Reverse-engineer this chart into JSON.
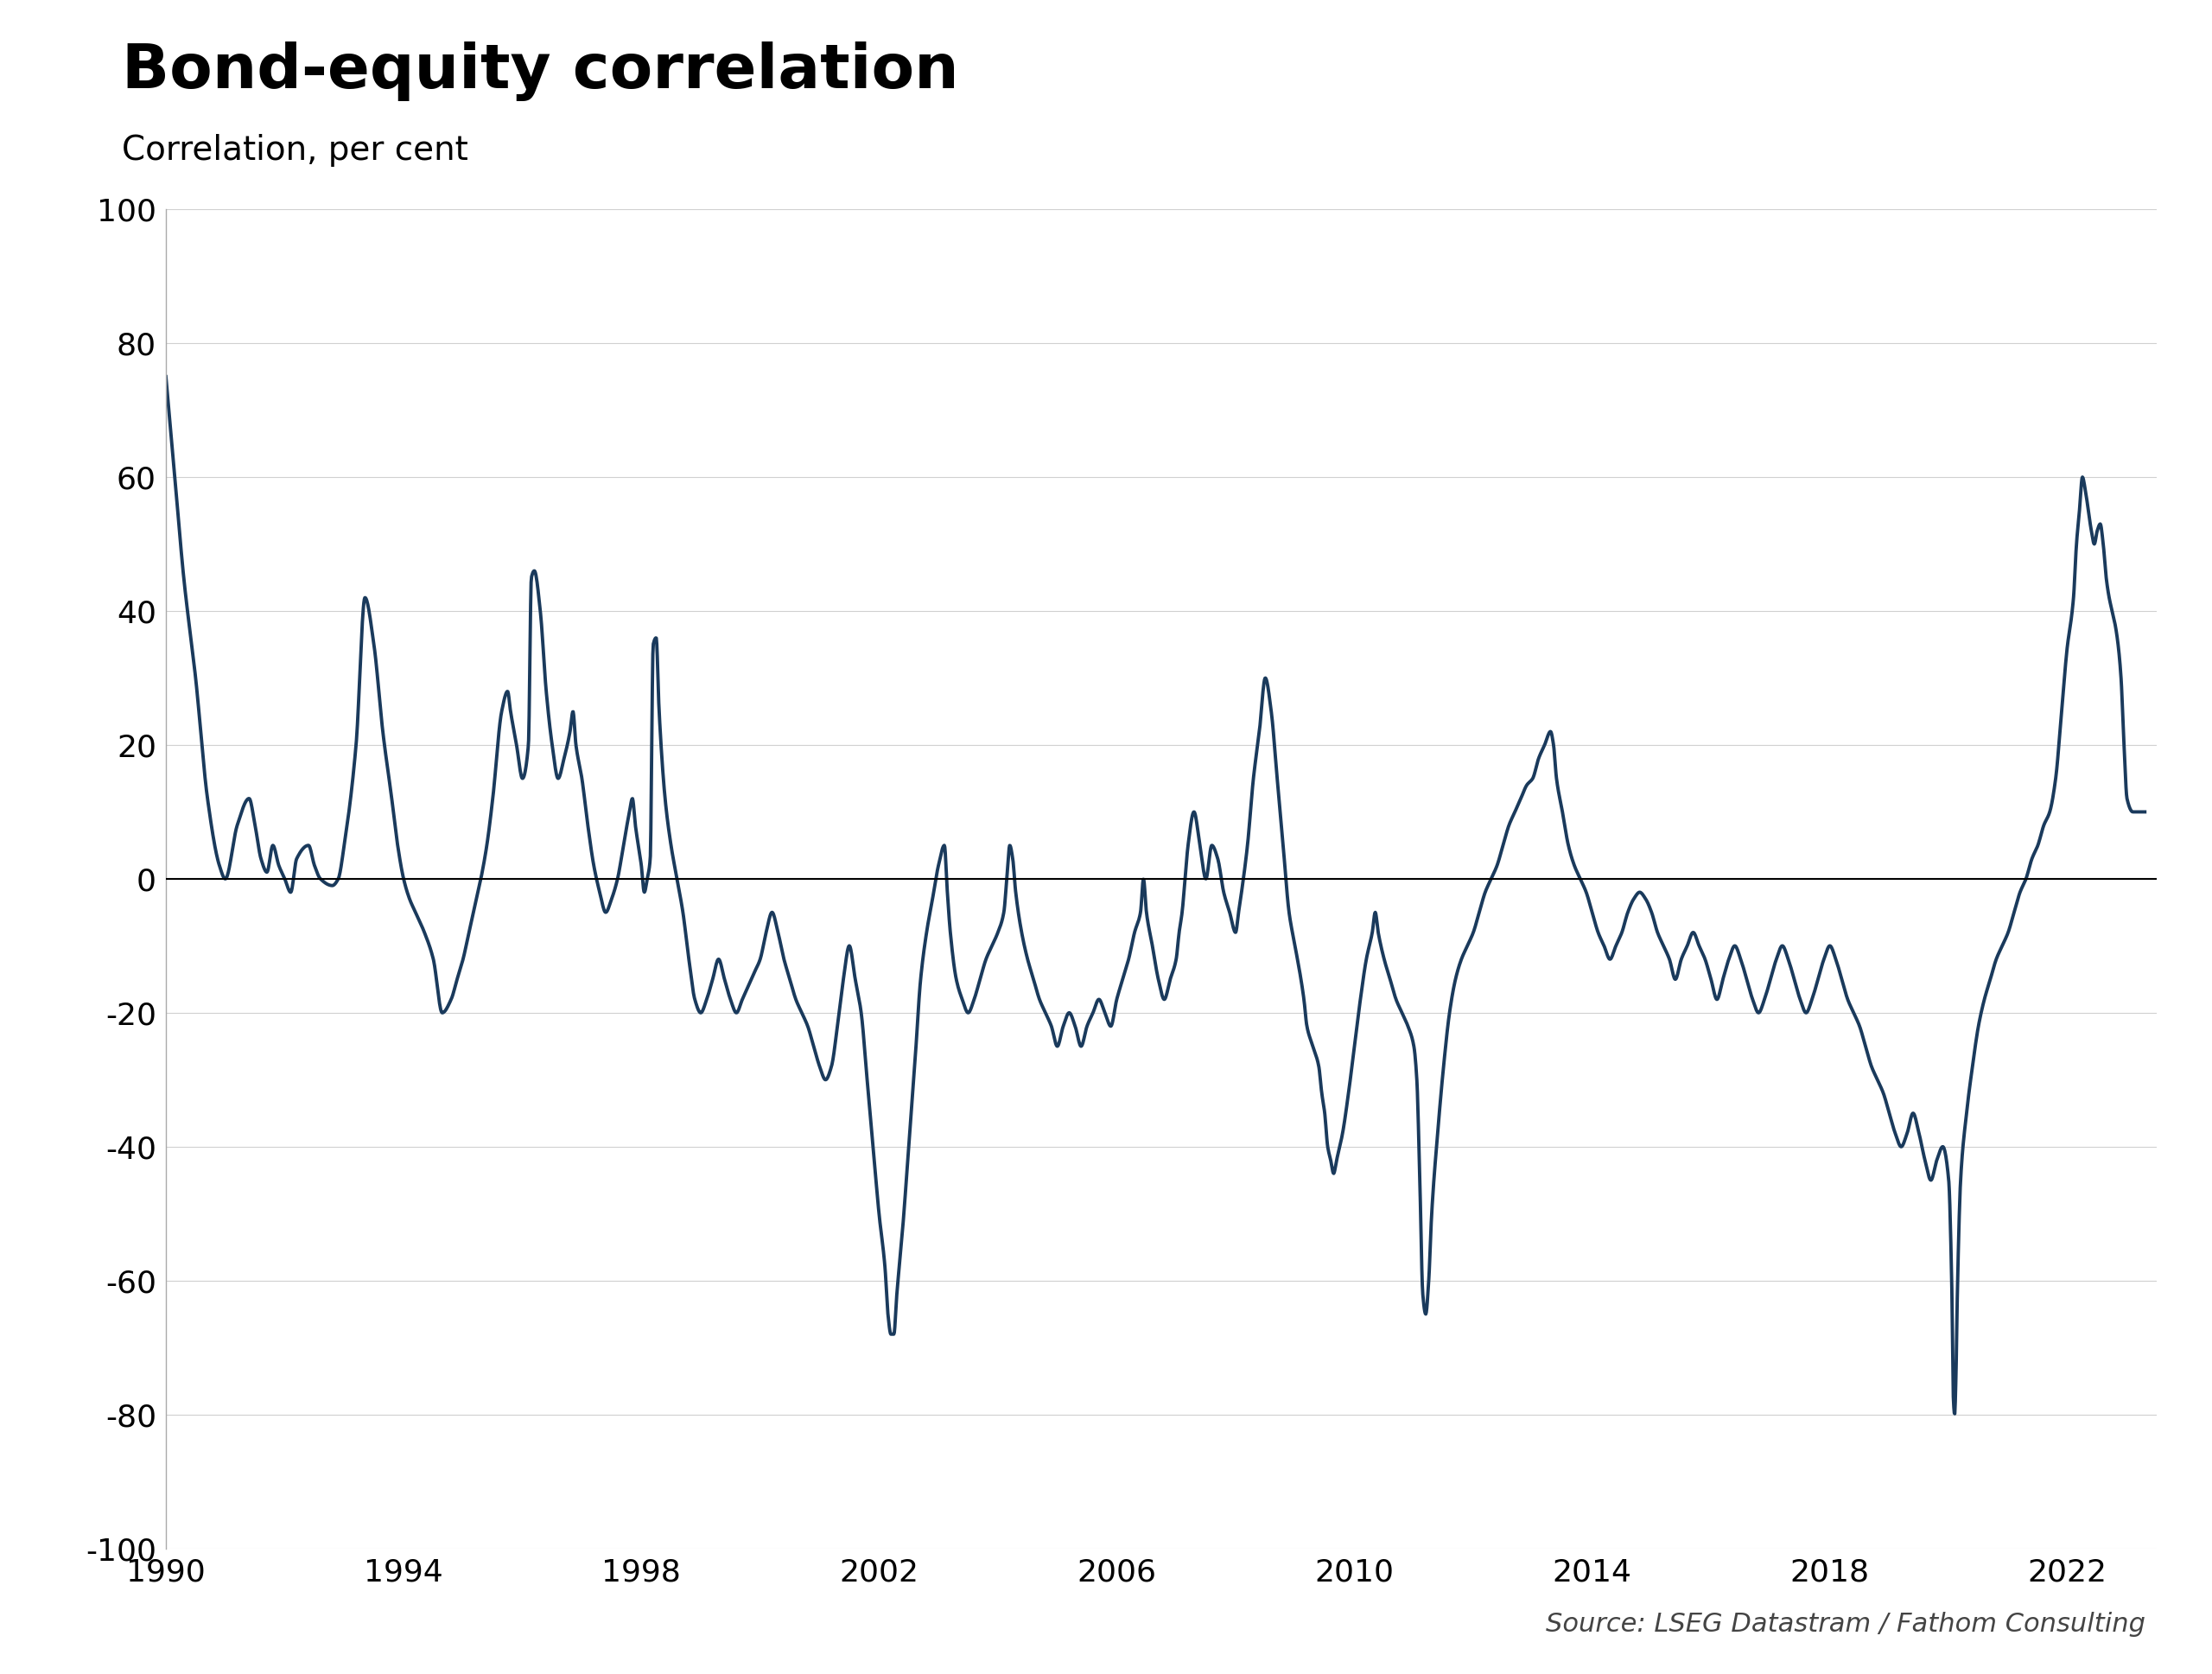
{
  "title": "Bond-equity correlation",
  "subtitle": "Correlation, per cent",
  "source": "Source: LSEG Datastram / Fathom Consulting",
  "line_color": "#1a3a5c",
  "background_color": "#ffffff",
  "grid_color": "#d0d0d0",
  "ylim": [
    -100,
    100
  ],
  "yticks": [
    -100,
    -80,
    -60,
    -40,
    -20,
    0,
    20,
    40,
    60,
    80,
    100
  ],
  "xticks": [
    1990,
    1994,
    1998,
    2002,
    2006,
    2010,
    2014,
    2018,
    2022
  ],
  "title_fontsize": 52,
  "subtitle_fontsize": 28,
  "tick_fontsize": 26,
  "source_fontsize": 22,
  "line_width": 2.8,
  "control_points": [
    [
      1990.0,
      75
    ],
    [
      1990.15,
      60
    ],
    [
      1990.3,
      45
    ],
    [
      1990.5,
      30
    ],
    [
      1990.7,
      12
    ],
    [
      1990.9,
      2
    ],
    [
      1991.0,
      0
    ],
    [
      1991.2,
      8
    ],
    [
      1991.4,
      12
    ],
    [
      1991.5,
      8
    ],
    [
      1991.6,
      3
    ],
    [
      1991.7,
      1
    ],
    [
      1991.8,
      5
    ],
    [
      1991.9,
      2
    ],
    [
      1992.0,
      0
    ],
    [
      1992.1,
      -2
    ],
    [
      1992.2,
      3
    ],
    [
      1992.4,
      5
    ],
    [
      1992.5,
      2
    ],
    [
      1992.6,
      0
    ],
    [
      1992.8,
      -1
    ],
    [
      1992.9,
      0
    ],
    [
      1993.0,
      5
    ],
    [
      1993.2,
      20
    ],
    [
      1993.35,
      42
    ],
    [
      1993.5,
      35
    ],
    [
      1993.65,
      22
    ],
    [
      1993.8,
      12
    ],
    [
      1993.9,
      5
    ],
    [
      1994.0,
      0
    ],
    [
      1994.1,
      -3
    ],
    [
      1994.2,
      -5
    ],
    [
      1994.35,
      -8
    ],
    [
      1994.5,
      -12
    ],
    [
      1994.65,
      -20
    ],
    [
      1994.8,
      -18
    ],
    [
      1994.9,
      -15
    ],
    [
      1995.0,
      -12
    ],
    [
      1995.1,
      -8
    ],
    [
      1995.2,
      -4
    ],
    [
      1995.3,
      0
    ],
    [
      1995.4,
      5
    ],
    [
      1995.5,
      12
    ],
    [
      1995.65,
      25
    ],
    [
      1995.75,
      28
    ],
    [
      1995.8,
      25
    ],
    [
      1995.9,
      20
    ],
    [
      1996.0,
      15
    ],
    [
      1996.1,
      20
    ],
    [
      1996.15,
      45
    ],
    [
      1996.2,
      46
    ],
    [
      1996.3,
      40
    ],
    [
      1996.4,
      28
    ],
    [
      1996.5,
      20
    ],
    [
      1996.6,
      15
    ],
    [
      1996.7,
      18
    ],
    [
      1996.8,
      22
    ],
    [
      1996.85,
      25
    ],
    [
      1996.9,
      20
    ],
    [
      1997.0,
      15
    ],
    [
      1997.1,
      8
    ],
    [
      1997.2,
      2
    ],
    [
      1997.3,
      -2
    ],
    [
      1997.4,
      -5
    ],
    [
      1997.5,
      -3
    ],
    [
      1997.6,
      0
    ],
    [
      1997.7,
      5
    ],
    [
      1997.8,
      10
    ],
    [
      1997.85,
      12
    ],
    [
      1997.9,
      8
    ],
    [
      1998.0,
      2
    ],
    [
      1998.05,
      -2
    ],
    [
      1998.1,
      0
    ],
    [
      1998.15,
      3
    ],
    [
      1998.2,
      35
    ],
    [
      1998.25,
      36
    ],
    [
      1998.3,
      25
    ],
    [
      1998.4,
      12
    ],
    [
      1998.5,
      5
    ],
    [
      1998.6,
      0
    ],
    [
      1998.7,
      -5
    ],
    [
      1998.8,
      -12
    ],
    [
      1998.9,
      -18
    ],
    [
      1999.0,
      -20
    ],
    [
      1999.1,
      -18
    ],
    [
      1999.2,
      -15
    ],
    [
      1999.3,
      -12
    ],
    [
      1999.4,
      -15
    ],
    [
      1999.5,
      -18
    ],
    [
      1999.6,
      -20
    ],
    [
      1999.7,
      -18
    ],
    [
      1999.8,
      -16
    ],
    [
      1999.9,
      -14
    ],
    [
      2000.0,
      -12
    ],
    [
      2000.1,
      -8
    ],
    [
      2000.2,
      -5
    ],
    [
      2000.3,
      -8
    ],
    [
      2000.4,
      -12
    ],
    [
      2000.5,
      -15
    ],
    [
      2000.6,
      -18
    ],
    [
      2000.7,
      -20
    ],
    [
      2000.8,
      -22
    ],
    [
      2000.9,
      -25
    ],
    [
      2001.0,
      -28
    ],
    [
      2001.1,
      -30
    ],
    [
      2001.2,
      -28
    ],
    [
      2001.3,
      -22
    ],
    [
      2001.4,
      -15
    ],
    [
      2001.5,
      -10
    ],
    [
      2001.6,
      -15
    ],
    [
      2001.7,
      -20
    ],
    [
      2001.8,
      -30
    ],
    [
      2001.9,
      -40
    ],
    [
      2002.0,
      -50
    ],
    [
      2002.1,
      -58
    ],
    [
      2002.15,
      -65
    ],
    [
      2002.2,
      -68
    ],
    [
      2002.25,
      -68
    ],
    [
      2002.3,
      -62
    ],
    [
      2002.4,
      -52
    ],
    [
      2002.5,
      -40
    ],
    [
      2002.6,
      -28
    ],
    [
      2002.7,
      -15
    ],
    [
      2002.8,
      -8
    ],
    [
      2002.9,
      -3
    ],
    [
      2003.0,
      2
    ],
    [
      2003.1,
      5
    ],
    [
      2003.15,
      -2
    ],
    [
      2003.2,
      -8
    ],
    [
      2003.3,
      -15
    ],
    [
      2003.4,
      -18
    ],
    [
      2003.5,
      -20
    ],
    [
      2003.6,
      -18
    ],
    [
      2003.7,
      -15
    ],
    [
      2003.8,
      -12
    ],
    [
      2003.9,
      -10
    ],
    [
      2004.0,
      -8
    ],
    [
      2004.1,
      -5
    ],
    [
      2004.15,
      0
    ],
    [
      2004.2,
      5
    ],
    [
      2004.25,
      3
    ],
    [
      2004.3,
      -2
    ],
    [
      2004.4,
      -8
    ],
    [
      2004.5,
      -12
    ],
    [
      2004.6,
      -15
    ],
    [
      2004.7,
      -18
    ],
    [
      2004.8,
      -20
    ],
    [
      2004.9,
      -22
    ],
    [
      2005.0,
      -25
    ],
    [
      2005.1,
      -22
    ],
    [
      2005.2,
      -20
    ],
    [
      2005.3,
      -22
    ],
    [
      2005.4,
      -25
    ],
    [
      2005.5,
      -22
    ],
    [
      2005.6,
      -20
    ],
    [
      2005.7,
      -18
    ],
    [
      2005.8,
      -20
    ],
    [
      2005.9,
      -22
    ],
    [
      2006.0,
      -18
    ],
    [
      2006.1,
      -15
    ],
    [
      2006.2,
      -12
    ],
    [
      2006.3,
      -8
    ],
    [
      2006.4,
      -5
    ],
    [
      2006.45,
      0
    ],
    [
      2006.5,
      -5
    ],
    [
      2006.6,
      -10
    ],
    [
      2006.7,
      -15
    ],
    [
      2006.8,
      -18
    ],
    [
      2006.9,
      -15
    ],
    [
      2007.0,
      -12
    ],
    [
      2007.05,
      -8
    ],
    [
      2007.1,
      -5
    ],
    [
      2007.15,
      0
    ],
    [
      2007.2,
      5
    ],
    [
      2007.3,
      10
    ],
    [
      2007.4,
      5
    ],
    [
      2007.5,
      0
    ],
    [
      2007.6,
      5
    ],
    [
      2007.7,
      3
    ],
    [
      2007.8,
      -2
    ],
    [
      2007.9,
      -5
    ],
    [
      2008.0,
      -8
    ],
    [
      2008.05,
      -5
    ],
    [
      2008.1,
      -2
    ],
    [
      2008.2,
      5
    ],
    [
      2008.3,
      15
    ],
    [
      2008.4,
      22
    ],
    [
      2008.5,
      30
    ],
    [
      2008.6,
      25
    ],
    [
      2008.7,
      15
    ],
    [
      2008.8,
      5
    ],
    [
      2008.9,
      -5
    ],
    [
      2009.0,
      -10
    ],
    [
      2009.1,
      -15
    ],
    [
      2009.15,
      -18
    ],
    [
      2009.2,
      -22
    ],
    [
      2009.3,
      -25
    ],
    [
      2009.4,
      -28
    ],
    [
      2009.45,
      -32
    ],
    [
      2009.5,
      -35
    ],
    [
      2009.55,
      -40
    ],
    [
      2009.6,
      -42
    ],
    [
      2009.65,
      -44
    ],
    [
      2009.7,
      -42
    ],
    [
      2009.8,
      -38
    ],
    [
      2009.9,
      -32
    ],
    [
      2010.0,
      -25
    ],
    [
      2010.1,
      -18
    ],
    [
      2010.2,
      -12
    ],
    [
      2010.3,
      -8
    ],
    [
      2010.35,
      -5
    ],
    [
      2010.4,
      -8
    ],
    [
      2010.5,
      -12
    ],
    [
      2010.6,
      -15
    ],
    [
      2010.7,
      -18
    ],
    [
      2010.8,
      -20
    ],
    [
      2010.9,
      -22
    ],
    [
      2011.0,
      -25
    ],
    [
      2011.05,
      -30
    ],
    [
      2011.1,
      -45
    ],
    [
      2011.15,
      -62
    ],
    [
      2011.2,
      -65
    ],
    [
      2011.25,
      -60
    ],
    [
      2011.3,
      -50
    ],
    [
      2011.4,
      -38
    ],
    [
      2011.5,
      -28
    ],
    [
      2011.6,
      -20
    ],
    [
      2011.7,
      -15
    ],
    [
      2011.8,
      -12
    ],
    [
      2011.9,
      -10
    ],
    [
      2012.0,
      -8
    ],
    [
      2012.1,
      -5
    ],
    [
      2012.2,
      -2
    ],
    [
      2012.3,
      0
    ],
    [
      2012.4,
      2
    ],
    [
      2012.5,
      5
    ],
    [
      2012.6,
      8
    ],
    [
      2012.7,
      10
    ],
    [
      2012.8,
      12
    ],
    [
      2012.9,
      14
    ],
    [
      2013.0,
      15
    ],
    [
      2013.1,
      18
    ],
    [
      2013.2,
      20
    ],
    [
      2013.3,
      22
    ],
    [
      2013.35,
      20
    ],
    [
      2013.4,
      15
    ],
    [
      2013.5,
      10
    ],
    [
      2013.6,
      5
    ],
    [
      2013.7,
      2
    ],
    [
      2013.8,
      0
    ],
    [
      2013.9,
      -2
    ],
    [
      2014.0,
      -5
    ],
    [
      2014.1,
      -8
    ],
    [
      2014.2,
      -10
    ],
    [
      2014.3,
      -12
    ],
    [
      2014.4,
      -10
    ],
    [
      2014.5,
      -8
    ],
    [
      2014.6,
      -5
    ],
    [
      2014.7,
      -3
    ],
    [
      2014.8,
      -2
    ],
    [
      2014.9,
      -3
    ],
    [
      2015.0,
      -5
    ],
    [
      2015.1,
      -8
    ],
    [
      2015.2,
      -10
    ],
    [
      2015.3,
      -12
    ],
    [
      2015.4,
      -15
    ],
    [
      2015.5,
      -12
    ],
    [
      2015.6,
      -10
    ],
    [
      2015.7,
      -8
    ],
    [
      2015.8,
      -10
    ],
    [
      2015.9,
      -12
    ],
    [
      2016.0,
      -15
    ],
    [
      2016.1,
      -18
    ],
    [
      2016.2,
      -15
    ],
    [
      2016.3,
      -12
    ],
    [
      2016.4,
      -10
    ],
    [
      2016.5,
      -12
    ],
    [
      2016.6,
      -15
    ],
    [
      2016.7,
      -18
    ],
    [
      2016.8,
      -20
    ],
    [
      2016.9,
      -18
    ],
    [
      2017.0,
      -15
    ],
    [
      2017.1,
      -12
    ],
    [
      2017.2,
      -10
    ],
    [
      2017.3,
      -12
    ],
    [
      2017.4,
      -15
    ],
    [
      2017.5,
      -18
    ],
    [
      2017.6,
      -20
    ],
    [
      2017.7,
      -18
    ],
    [
      2017.8,
      -15
    ],
    [
      2017.9,
      -12
    ],
    [
      2018.0,
      -10
    ],
    [
      2018.1,
      -12
    ],
    [
      2018.2,
      -15
    ],
    [
      2018.3,
      -18
    ],
    [
      2018.4,
      -20
    ],
    [
      2018.5,
      -22
    ],
    [
      2018.6,
      -25
    ],
    [
      2018.7,
      -28
    ],
    [
      2018.8,
      -30
    ],
    [
      2018.9,
      -32
    ],
    [
      2019.0,
      -35
    ],
    [
      2019.1,
      -38
    ],
    [
      2019.2,
      -40
    ],
    [
      2019.3,
      -38
    ],
    [
      2019.4,
      -35
    ],
    [
      2019.5,
      -38
    ],
    [
      2019.6,
      -42
    ],
    [
      2019.7,
      -45
    ],
    [
      2019.8,
      -42
    ],
    [
      2019.9,
      -40
    ],
    [
      2020.0,
      -45
    ],
    [
      2020.05,
      -60
    ],
    [
      2020.08,
      -78
    ],
    [
      2020.1,
      -80
    ],
    [
      2020.12,
      -75
    ],
    [
      2020.15,
      -60
    ],
    [
      2020.2,
      -45
    ],
    [
      2020.3,
      -35
    ],
    [
      2020.4,
      -28
    ],
    [
      2020.5,
      -22
    ],
    [
      2020.6,
      -18
    ],
    [
      2020.7,
      -15
    ],
    [
      2020.8,
      -12
    ],
    [
      2020.9,
      -10
    ],
    [
      2021.0,
      -8
    ],
    [
      2021.1,
      -5
    ],
    [
      2021.2,
      -2
    ],
    [
      2021.3,
      0
    ],
    [
      2021.4,
      3
    ],
    [
      2021.5,
      5
    ],
    [
      2021.6,
      8
    ],
    [
      2021.7,
      10
    ],
    [
      2021.8,
      15
    ],
    [
      2021.9,
      25
    ],
    [
      2022.0,
      35
    ],
    [
      2022.05,
      38
    ],
    [
      2022.1,
      42
    ],
    [
      2022.15,
      50
    ],
    [
      2022.2,
      55
    ],
    [
      2022.25,
      60
    ],
    [
      2022.3,
      58
    ],
    [
      2022.35,
      55
    ],
    [
      2022.4,
      52
    ],
    [
      2022.45,
      50
    ],
    [
      2022.5,
      52
    ],
    [
      2022.55,
      53
    ],
    [
      2022.6,
      50
    ],
    [
      2022.65,
      45
    ],
    [
      2022.7,
      42
    ],
    [
      2022.75,
      40
    ],
    [
      2022.8,
      38
    ],
    [
      2022.85,
      35
    ],
    [
      2022.9,
      30
    ],
    [
      2022.95,
      20
    ],
    [
      2023.0,
      12
    ],
    [
      2023.1,
      10
    ],
    [
      2023.2,
      10
    ],
    [
      2023.3,
      10
    ]
  ]
}
